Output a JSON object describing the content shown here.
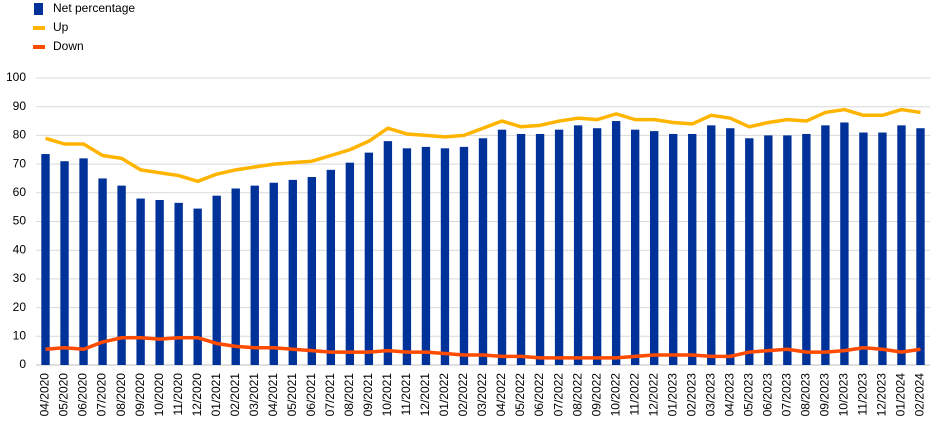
{
  "chart_data": {
    "type": "bar_line",
    "categories": [
      "04/2020",
      "05/2020",
      "06/2020",
      "07/2020",
      "08/2020",
      "09/2020",
      "10/2020",
      "11/2020",
      "12/2020",
      "01/2021",
      "02/2021",
      "03/2021",
      "04/2021",
      "05/2021",
      "06/2021",
      "07/2021",
      "08/2021",
      "09/2021",
      "10/2021",
      "11/2021",
      "12/2021",
      "01/2022",
      "02/2022",
      "03/2022",
      "04/2022",
      "05/2022",
      "06/2022",
      "07/2022",
      "08/2022",
      "09/2022",
      "10/2022",
      "11/2022",
      "12/2022",
      "01/2023",
      "02/2023",
      "03/2023",
      "04/2023",
      "05/2023",
      "06/2023",
      "07/2023",
      "08/2023",
      "09/2023",
      "10/2023",
      "11/2023",
      "12/2023",
      "01/2024",
      "02/2024"
    ],
    "series": [
      {
        "name": "Net percentage",
        "type": "bar",
        "color": "#003299",
        "values": [
          73.5,
          71,
          72,
          65,
          62.5,
          58,
          57.5,
          56.5,
          54.5,
          59,
          61.5,
          62.5,
          63.5,
          64.5,
          65.5,
          68,
          70.5,
          74,
          78,
          75.5,
          76,
          75.5,
          76,
          79,
          82,
          80.5,
          80.5,
          82,
          83.5,
          82.5,
          85,
          82,
          81.5,
          80.5,
          80.5,
          83.5,
          82.5,
          79,
          80,
          80,
          80.5,
          83.5,
          84.5,
          81,
          81,
          83.5,
          82.5
        ]
      },
      {
        "name": "Up",
        "type": "line",
        "color": "#ffb400",
        "values": [
          79,
          77,
          77,
          73,
          72,
          68,
          67,
          66,
          64,
          66.5,
          68,
          69,
          70,
          70.5,
          71,
          73,
          75,
          78,
          82.5,
          80.5,
          80,
          79.5,
          80,
          82.5,
          85,
          83,
          83.5,
          85,
          86,
          85.5,
          87.5,
          85.5,
          85.5,
          84.5,
          84,
          87,
          86,
          83,
          84.5,
          85.5,
          85,
          88,
          89,
          87,
          87,
          89,
          88
        ]
      },
      {
        "name": "Down",
        "type": "line",
        "color": "#ff4b00",
        "values": [
          5.5,
          6,
          5.5,
          8,
          9.5,
          9.5,
          9,
          9.5,
          9.5,
          7.5,
          6.5,
          6,
          6,
          5.5,
          5,
          4.5,
          4.5,
          4.5,
          5,
          4.5,
          4.5,
          4,
          3.5,
          3.5,
          3,
          3,
          2.5,
          2.5,
          2.5,
          2.5,
          2.5,
          3,
          3.5,
          3.5,
          3.5,
          3,
          3,
          4.5,
          5,
          5.5,
          4.5,
          4.5,
          5,
          6,
          5.5,
          4.5,
          5.5
        ]
      }
    ],
    "ylim": [
      0,
      100
    ],
    "yticks": [
      0,
      10,
      20,
      30,
      40,
      50,
      60,
      70,
      80,
      90,
      100
    ],
    "grid": true,
    "legend": "top-left"
  }
}
